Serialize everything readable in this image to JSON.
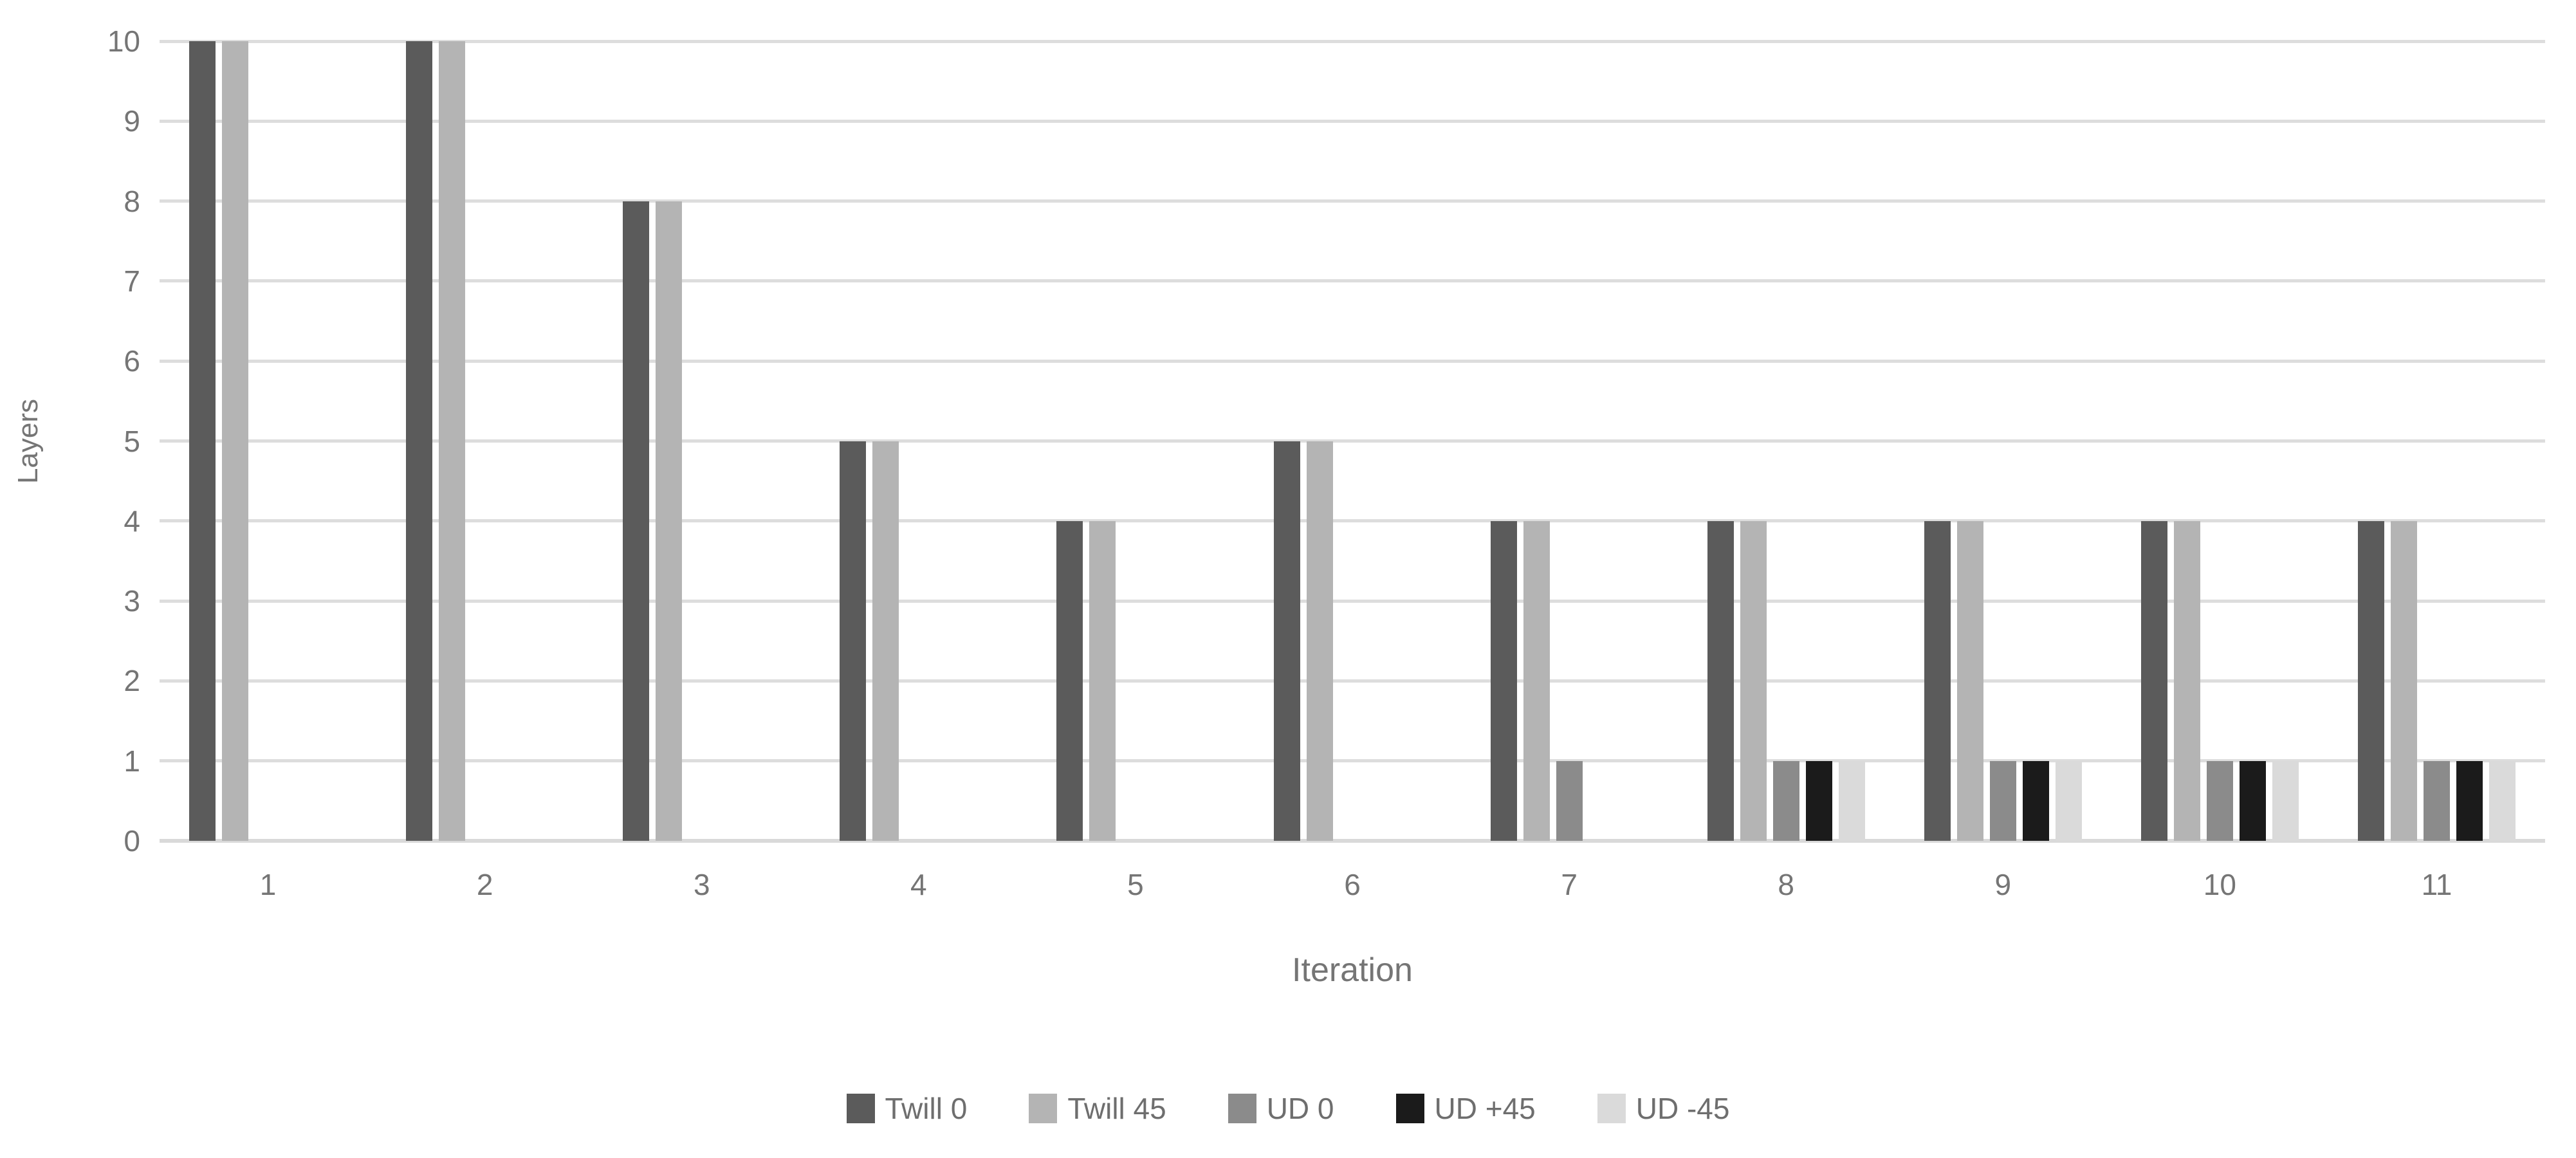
{
  "chart_data": {
    "type": "bar",
    "title": "",
    "xlabel": "Iteration",
    "ylabel": "Layers",
    "categories": [
      "1",
      "2",
      "3",
      "4",
      "5",
      "6",
      "7",
      "8",
      "9",
      "10",
      "11"
    ],
    "series": [
      {
        "name": "Twill 0",
        "color": "#5b5b5b",
        "values": [
          10,
          10,
          8,
          5,
          4,
          5,
          4,
          4,
          4,
          4,
          4
        ]
      },
      {
        "name": "Twill 45",
        "color": "#b4b4b4",
        "values": [
          10,
          10,
          8,
          5,
          4,
          5,
          4,
          4,
          4,
          4,
          4
        ]
      },
      {
        "name": "UD 0",
        "color": "#8b8b8b",
        "values": [
          0,
          0,
          0,
          0,
          0,
          0,
          1,
          1,
          1,
          1,
          1
        ]
      },
      {
        "name": "UD +45",
        "color": "#1b1b1b",
        "values": [
          0,
          0,
          0,
          0,
          0,
          0,
          0,
          1,
          1,
          1,
          1
        ]
      },
      {
        "name": "UD -45",
        "color": "#dadada",
        "values": [
          0,
          0,
          0,
          0,
          0,
          0,
          0,
          1,
          1,
          1,
          1
        ]
      }
    ],
    "ylim": [
      0,
      10
    ],
    "ytick_step": 1,
    "yticks": [
      "0",
      "1",
      "2",
      "3",
      "4",
      "5",
      "6",
      "7",
      "8",
      "9",
      "10"
    ],
    "grid": true,
    "legend_position": "bottom",
    "colors": {
      "gridline": "#dddddd",
      "axis_line": "#d9d9d9",
      "axis_text": "#757575",
      "legend_text": "#6e6e6e"
    }
  }
}
